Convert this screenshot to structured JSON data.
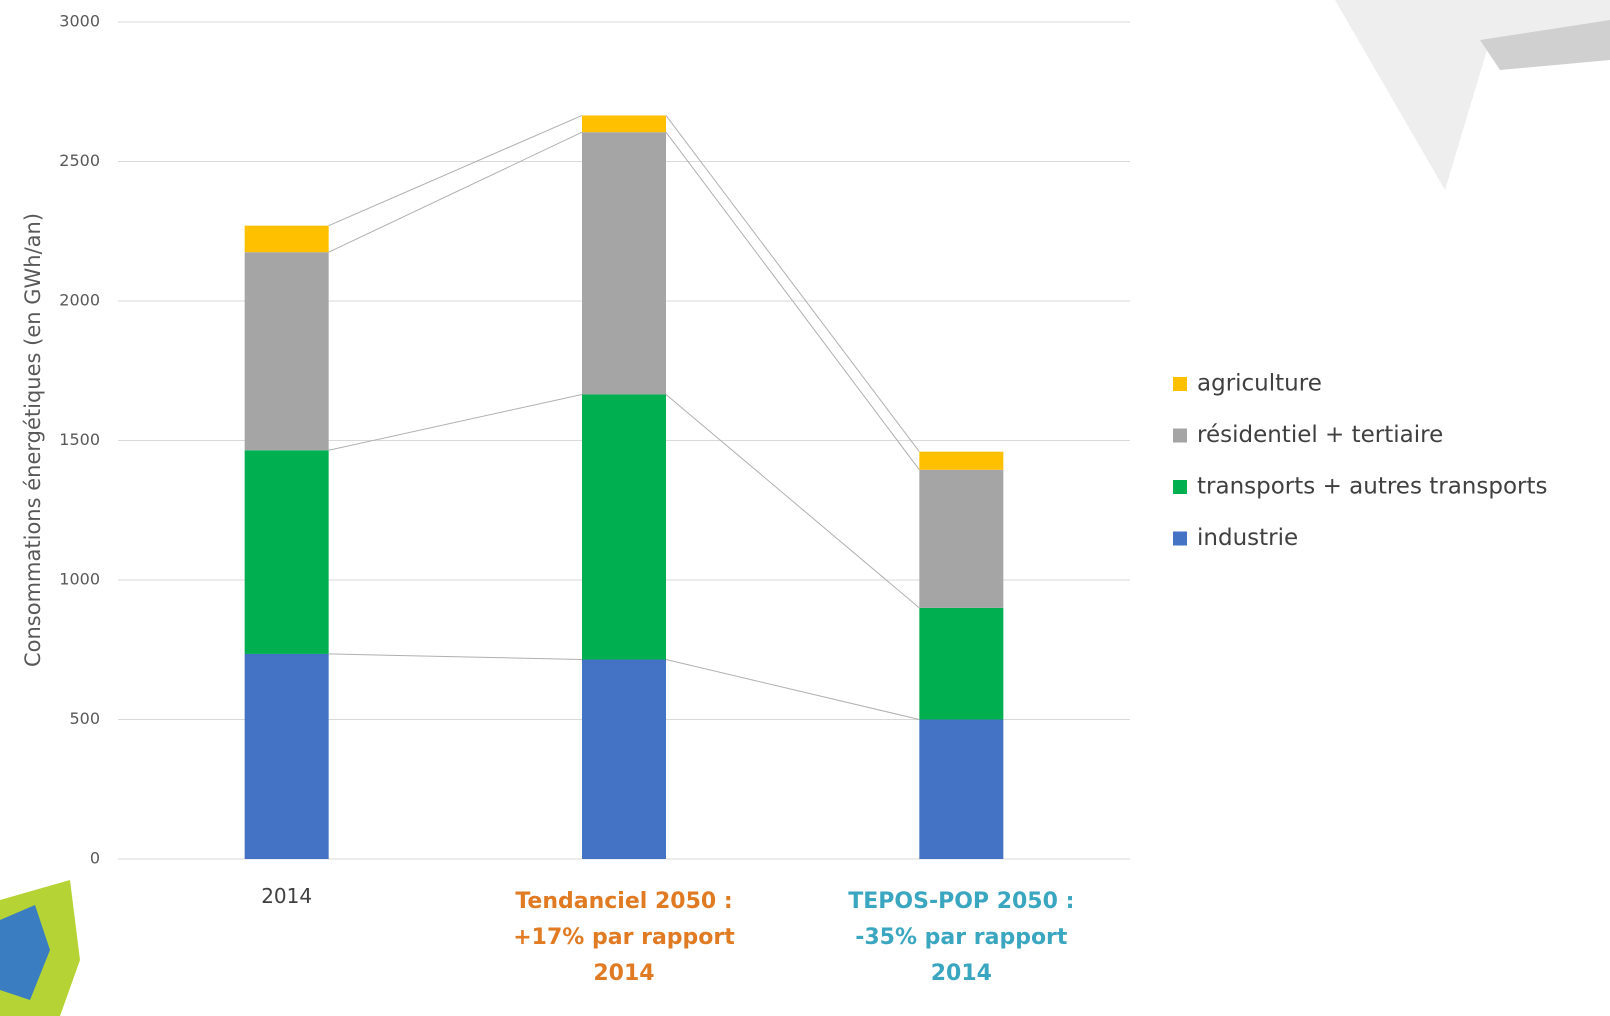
{
  "chart_data": {
    "type": "stacked_bar",
    "y_label": "Consommations énergétiques (en GWh/an)",
    "categories": [
      "2014",
      "Tendanciel 2050 : +17% par rapport 2014",
      "TEPOS-POP 2050 : -35% par rapport 2014"
    ],
    "category_colors": [
      "#404040",
      "#e07b24",
      "#3aa6c0"
    ],
    "series": [
      {
        "name": "industrie",
        "color": "#4472c4",
        "values": [
          735,
          715,
          500
        ]
      },
      {
        "name": "transports + autres transports",
        "color": "#00b050",
        "values": [
          730,
          950,
          400
        ]
      },
      {
        "name": "résidentiel + tertiaire",
        "color": "#a5a5a5",
        "values": [
          710,
          940,
          495
        ]
      },
      {
        "name": "agriculture",
        "color": "#ffc000",
        "values": [
          95,
          60,
          65
        ]
      }
    ],
    "ylim": [
      0,
      3000
    ],
    "yticks": [
      0,
      500,
      1000,
      1500,
      2000,
      2500,
      3000
    ],
    "grid": true,
    "legend": "right"
  }
}
